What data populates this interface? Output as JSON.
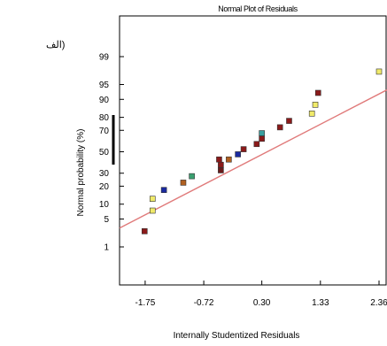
{
  "panel_label": "(الف",
  "chart_data": {
    "type": "scatter",
    "title": "Normal Plot of Residuals",
    "xlabel": "Internally Studentized Residuals",
    "ylabel": "Normal probability (%)",
    "xlim": [
      -2.2,
      2.5
    ],
    "x_ticks": [
      "-1.75",
      "-0.72",
      "0.30",
      "1.33",
      "2.36"
    ],
    "y_ticks": [
      "99",
      "95",
      "90",
      "80",
      "70",
      "50",
      "30",
      "20",
      "10",
      "5",
      "1"
    ],
    "y_scale": "normal-probability",
    "grid": false,
    "fit_line": {
      "x": [
        -2.2,
        2.5
      ],
      "y_percent": [
        3.1,
        93.5
      ],
      "color": "#e07a7a"
    },
    "points": [
      {
        "x": -1.76,
        "y": 2.6,
        "color": "#8b1a1a"
      },
      {
        "x": -1.62,
        "y": 7.5,
        "color": "#f0ea6a"
      },
      {
        "x": -1.62,
        "y": 12.5,
        "color": "#f0ea6a"
      },
      {
        "x": -1.42,
        "y": 17.5,
        "color": "#1a2aa0"
      },
      {
        "x": -1.08,
        "y": 22.5,
        "color": "#b06020"
      },
      {
        "x": -0.93,
        "y": 27.5,
        "color": "#3aa070"
      },
      {
        "x": -0.42,
        "y": 32.5,
        "color": "#6a1a1a"
      },
      {
        "x": -0.42,
        "y": 37.5,
        "color": "#8b1a1a"
      },
      {
        "x": -0.45,
        "y": 42.5,
        "color": "#8b1a1a"
      },
      {
        "x": -0.28,
        "y": 42.5,
        "color": "#b06020"
      },
      {
        "x": -0.12,
        "y": 47.5,
        "color": "#1a2aa0"
      },
      {
        "x": -0.02,
        "y": 52.5,
        "color": "#8b1a1a"
      },
      {
        "x": 0.21,
        "y": 57.5,
        "color": "#8b1a1a"
      },
      {
        "x": 0.3,
        "y": 62.5,
        "color": "#8b1a1a"
      },
      {
        "x": 0.3,
        "y": 67.5,
        "color": "#3aa0a0"
      },
      {
        "x": 0.62,
        "y": 72.5,
        "color": "#8b1a1a"
      },
      {
        "x": 0.78,
        "y": 77.5,
        "color": "#8b1a1a"
      },
      {
        "x": 1.18,
        "y": 82.5,
        "color": "#f0ea6a"
      },
      {
        "x": 1.24,
        "y": 87.5,
        "color": "#f0ea6a"
      },
      {
        "x": 1.29,
        "y": 92.5,
        "color": "#8b1a1a"
      },
      {
        "x": 2.36,
        "y": 97.5,
        "color": "#f0ea6a"
      }
    ]
  }
}
